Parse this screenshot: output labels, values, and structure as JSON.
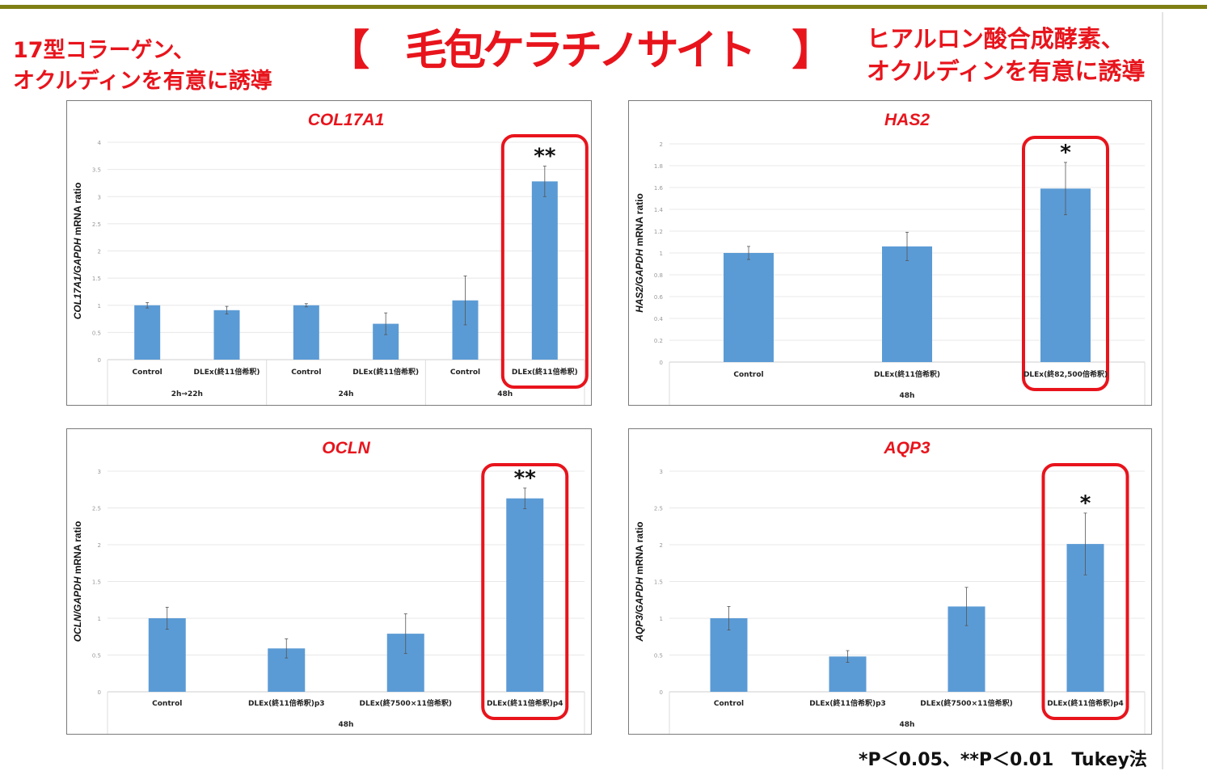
{
  "header": {
    "left_line1": "17型コラーゲン、",
    "left_line2": "オクルディンを有意に誘導",
    "title": "【　毛包ケラチノサイト　】",
    "right_line1": "ヒアルロン酸合成酵素、",
    "right_line2": "オクルディンを有意に誘導"
  },
  "footer": {
    "note": "*P＜0.05、**P＜0.01　Tukey法"
  },
  "colors": {
    "bar": "#5b9bd5",
    "title": "#e8141c",
    "highlight": "#e8141c",
    "rule": "#7f7f12"
  },
  "chart_data": [
    {
      "type": "bar",
      "title": "COL17A1",
      "ylabel_gene": "COL17A1",
      "ylabel_ref": "/GAPDH",
      "ylabel_suffix": " mRNA ratio",
      "ylim": [
        0,
        4
      ],
      "ystep": 0.5,
      "yticks": [
        "0",
        "0.5",
        "1",
        "1.5",
        "2",
        "2.5",
        "3",
        "3.5",
        "4"
      ],
      "categories": [
        "Control",
        "DLEx(終11倍希釈)",
        "Control",
        "DLEx(終11倍希釈)",
        "Control",
        "DLEx(終11倍希釈)"
      ],
      "groups": [
        {
          "label": "2h→22h",
          "span": 2
        },
        {
          "label": "24h",
          "span": 2
        },
        {
          "label": "48h",
          "span": 2
        }
      ],
      "values": [
        1.0,
        0.91,
        1.0,
        0.66,
        1.09,
        3.28
      ],
      "errors": [
        0.05,
        0.07,
        0.03,
        0.2,
        0.45,
        0.28
      ],
      "highlight": 5,
      "significance": "**",
      "grid": true
    },
    {
      "type": "bar",
      "title": "HAS2",
      "ylabel_gene": "HAS2",
      "ylabel_ref": "/GAPDH",
      "ylabel_suffix": " mRNA ratio",
      "ylim": [
        0,
        2
      ],
      "ystep": 0.2,
      "yticks": [
        "0",
        "0.2",
        "0.4",
        "0.6",
        "0.8",
        "1",
        "1.2",
        "1.4",
        "1.6",
        "1.8",
        "2"
      ],
      "categories": [
        "Control",
        "DLEx(終11倍希釈)",
        "DLEx(終82,500倍希釈)"
      ],
      "groups": [
        {
          "label": "48h",
          "span": 3
        }
      ],
      "values": [
        1.0,
        1.06,
        1.59
      ],
      "errors": [
        0.06,
        0.13,
        0.24
      ],
      "highlight": 2,
      "significance": "*",
      "grid": true
    },
    {
      "type": "bar",
      "title": "OCLN",
      "ylabel_gene": "OCLN",
      "ylabel_ref": "/GAPDH",
      "ylabel_suffix": " mRNA ratio",
      "ylim": [
        0,
        3
      ],
      "ystep": 0.5,
      "yticks": [
        "0",
        "0.5",
        "1",
        "1.5",
        "2",
        "2.5",
        "3"
      ],
      "categories": [
        "Control",
        "DLEx(終11倍希釈)p3",
        "DLEx(終7500×11倍希釈)",
        "DLEx(終11倍希釈)p4"
      ],
      "groups": [
        {
          "label": "48h",
          "span": 4
        }
      ],
      "values": [
        1.0,
        0.59,
        0.79,
        2.63
      ],
      "errors": [
        0.15,
        0.13,
        0.27,
        0.14
      ],
      "highlight": 3,
      "significance": "**",
      "grid": true
    },
    {
      "type": "bar",
      "title": "AQP3",
      "ylabel_gene": "AQP3",
      "ylabel_ref": "/GAPDH",
      "ylabel_suffix": " mRNA ratio",
      "ylim": [
        0,
        3
      ],
      "ystep": 0.5,
      "yticks": [
        "0",
        "0.5",
        "1",
        "1.5",
        "2",
        "2.5",
        "3"
      ],
      "categories": [
        "Control",
        "DLEx(終11倍希釈)p3",
        "DLEx(終7500×11倍希釈)",
        "DLEx(終11倍希釈)p4"
      ],
      "groups": [
        {
          "label": "48h",
          "span": 4
        }
      ],
      "values": [
        1.0,
        0.48,
        1.16,
        2.01
      ],
      "errors": [
        0.16,
        0.08,
        0.26,
        0.42
      ],
      "highlight": 3,
      "significance": "*",
      "grid": true
    }
  ]
}
